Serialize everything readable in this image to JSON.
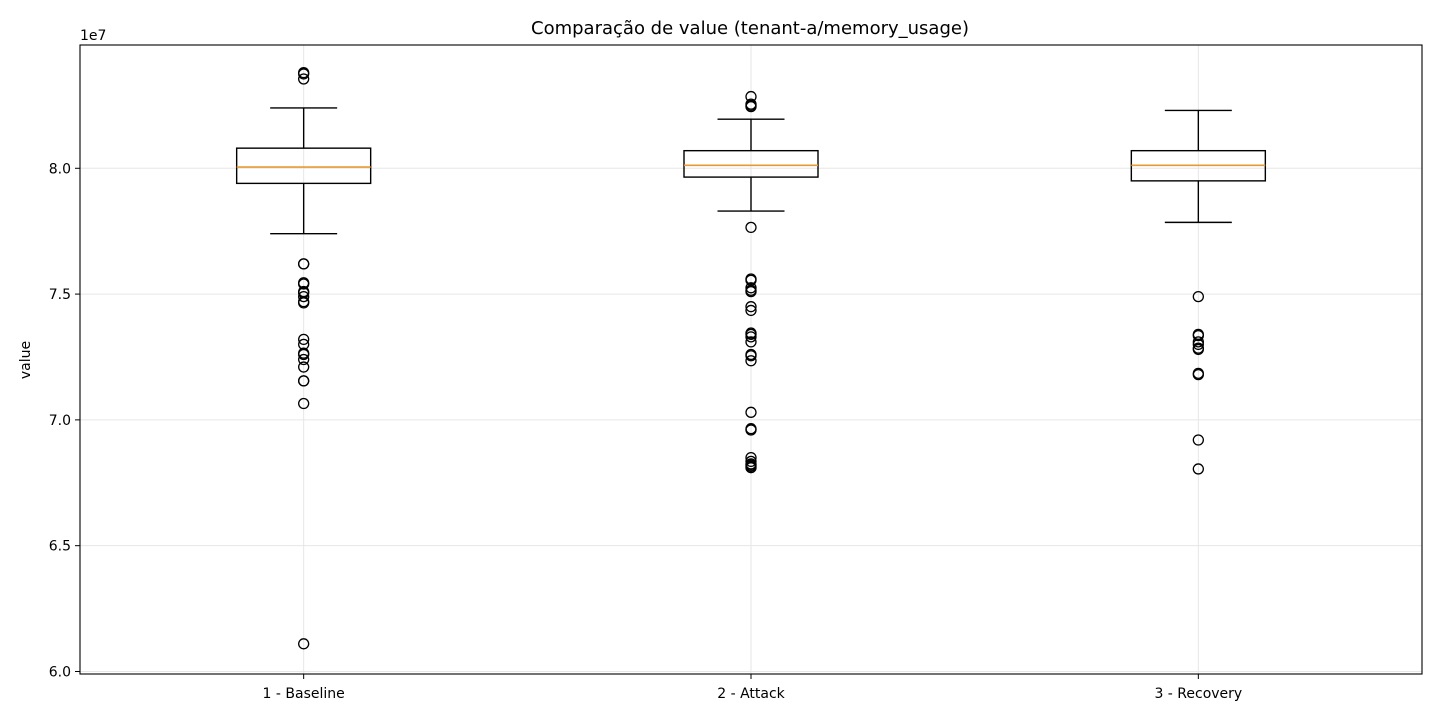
{
  "chart_data": {
    "type": "boxplot",
    "title": "Comparação de value (tenant-a/memory_usage)",
    "xlabel": "",
    "ylabel": "value",
    "y_offset_label": "1e7",
    "y_scale_factor": 10000000,
    "ylim": [
      5.99,
      8.49
    ],
    "yticks": [
      6.0,
      6.5,
      7.0,
      7.5,
      8.0
    ],
    "ytick_labels": [
      "6.0",
      "6.5",
      "7.0",
      "7.5",
      "8.0"
    ],
    "grid": true,
    "categories": [
      "1 - Baseline",
      "2 - Attack",
      "3 - Recovery"
    ],
    "boxes": [
      {
        "whisker_low": 7.74,
        "q1": 7.94,
        "median": 8.005,
        "q3": 8.08,
        "whisker_high": 8.24,
        "outliers": [
          8.38,
          8.375,
          8.355,
          7.62,
          7.62,
          7.545,
          7.54,
          7.51,
          7.505,
          7.49,
          7.47,
          7.465,
          7.32,
          7.3,
          7.265,
          7.26,
          7.24,
          7.21,
          7.155,
          7.155,
          7.065,
          6.11
        ]
      },
      {
        "whisker_low": 7.83,
        "q1": 7.965,
        "median": 8.012,
        "q3": 8.07,
        "whisker_high": 8.195,
        "outliers": [
          8.285,
          8.255,
          8.25,
          8.245,
          7.765,
          7.56,
          7.555,
          7.525,
          7.515,
          7.51,
          7.45,
          7.435,
          7.345,
          7.34,
          7.33,
          7.31,
          7.26,
          7.255,
          7.235,
          7.03,
          6.965,
          6.96,
          6.85,
          6.835,
          6.825,
          6.82,
          6.815,
          6.81
        ]
      },
      {
        "whisker_low": 7.785,
        "q1": 7.95,
        "median": 8.012,
        "q3": 8.07,
        "whisker_high": 8.23,
        "outliers": [
          7.49,
          7.34,
          7.335,
          7.31,
          7.3,
          7.285,
          7.28,
          7.185,
          7.18,
          6.92,
          6.805
        ]
      }
    ],
    "colors": {
      "box": "#000000",
      "median": "#e69a33",
      "grid": "#e6e6e6",
      "outlier": "#000000"
    }
  }
}
